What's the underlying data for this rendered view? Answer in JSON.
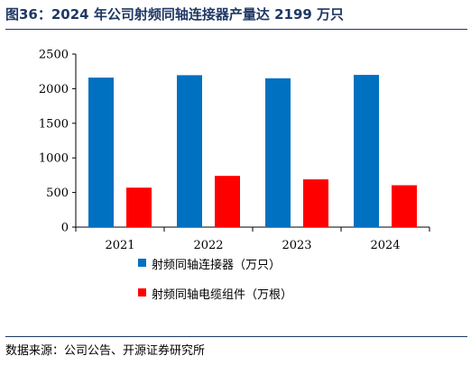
{
  "title": "图36：2024 年公司射频同轴连接器产量达 2199 万只",
  "source": "数据来源：公司公告、开源证券研究所",
  "colors": {
    "series_1": "#0070c0",
    "series_2": "#ff0000",
    "title": "#1f3864"
  },
  "chart_data": {
    "type": "bar",
    "categories": [
      "2021",
      "2022",
      "2023",
      "2024"
    ],
    "series": [
      {
        "name": "射频同轴连接器（万只）",
        "values": [
          2160,
          2195,
          2150,
          2199
        ]
      },
      {
        "name": "射频同轴电缆组件（万根）",
        "values": [
          570,
          740,
          690,
          605
        ]
      }
    ],
    "ylim": [
      0,
      2500
    ],
    "yticks": [
      0,
      500,
      1000,
      1500,
      2000,
      2500
    ],
    "grid": false,
    "legend_position": "bottom"
  }
}
